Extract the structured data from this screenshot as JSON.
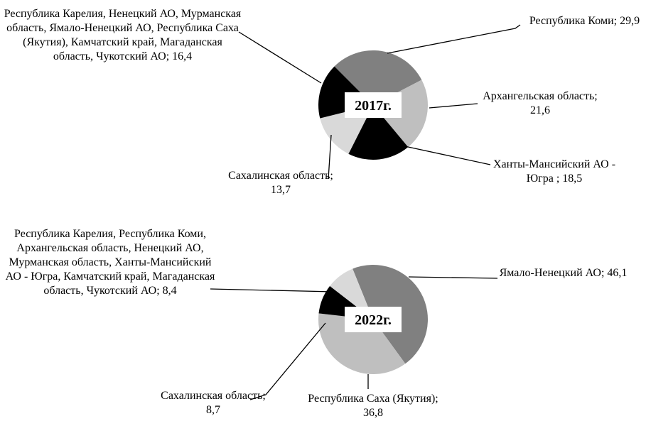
{
  "chart_data": [
    {
      "type": "pie",
      "title": "2017г.",
      "startangle": -45,
      "values": [
        29.9,
        21.6,
        18.5,
        13.7,
        16.4
      ],
      "value_labels": [
        "Республика Коми; 29,9",
        "Архангельская область; 21,6",
        "Ханты-Мансийский АО - Югра ; 18,5",
        "Сахалинская область; 13,7",
        "Республика Карелия, Ненецкий АО, Мурманская область, Ямало-Ненецкий АО, Республика Саха (Якутия), Камчатский край, Магаданская область, Чукотский АО; 16,4"
      ],
      "colors": [
        "#808080",
        "#bfbfbf",
        "#000000",
        "#d9d9d9",
        "#000000"
      ]
    },
    {
      "type": "pie",
      "title": "2022г.",
      "startangle": -22,
      "values": [
        46.1,
        36.8,
        8.7,
        8.4
      ],
      "value_labels": [
        "Ямало-Ненецкий АО; 46,1",
        "Республика Саха (Якутия); 36,8",
        "Сахалинская область; 8,7",
        "Республика Карелия, Республика Коми, Архангельская область, Ненецкий АО, Мурманская область, Ханты-Мансийский АО - Югра, Камчатский край, Магаданская область, Чукотский АО; 8,4"
      ],
      "colors": [
        "#808080",
        "#bfbfbf",
        "#000000",
        "#d9d9d9"
      ]
    }
  ]
}
